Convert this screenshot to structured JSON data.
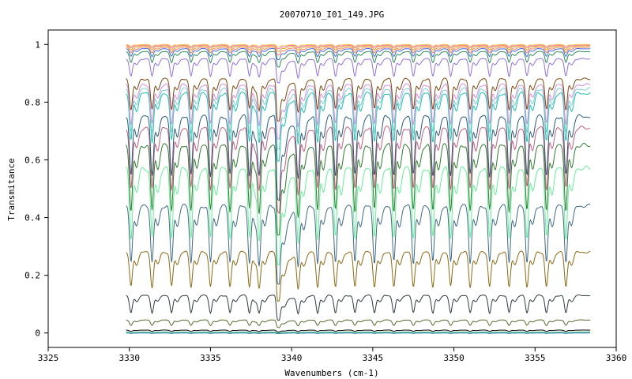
{
  "chart_data": {
    "type": "line",
    "title": "20070710_I01_149.JPG",
    "xlabel": "Wavenumbers (cm-1)",
    "ylabel": "Transmitance",
    "xlim": [
      3325,
      3360
    ],
    "ylim": [
      -0.05,
      1.05
    ],
    "xticks": [
      3325,
      3330,
      3335,
      3340,
      3345,
      3350,
      3355,
      3360
    ],
    "yticks": [
      0,
      0.2,
      0.4,
      0.6,
      0.8,
      1
    ],
    "ytick_labels": [
      "0",
      "0.2",
      "0.4",
      "0.6",
      "0.8",
      "1"
    ],
    "grid": false,
    "legend": "none",
    "x_range": [
      3329.8,
      3358.4
    ],
    "absorption_lines": [
      3330.1,
      3331.4,
      3332.6,
      3333.8,
      3335.0,
      3336.2,
      3337.4,
      3338.0,
      3339.2,
      3340.4,
      3341.6,
      3342.7,
      3343.9,
      3345.1,
      3346.3,
      3347.5,
      3348.7,
      3349.8,
      3351.0,
      3352.2,
      3353.4,
      3354.5,
      3355.7,
      3356.9
    ],
    "sharp_feature_x": 3339.1,
    "series": [
      {
        "baseline": 0.0,
        "depth": 0.002,
        "color": "#1f77b4"
      },
      {
        "baseline": 0.003,
        "depth": 0.003,
        "color": "#3cb371"
      },
      {
        "baseline": 0.01,
        "depth": 0.006,
        "color": "#000000"
      },
      {
        "baseline": 0.045,
        "depth": 0.025,
        "color": "#556b2f"
      },
      {
        "baseline": 0.13,
        "depth": 0.08,
        "color": "#2f3a40"
      },
      {
        "baseline": 0.28,
        "depth": 0.16,
        "color": "#8b6914"
      },
      {
        "baseline": 0.44,
        "depth": 0.26,
        "color": "#3e6a85"
      },
      {
        "baseline": 0.57,
        "depth": 0.32,
        "color": "#66ee99"
      },
      {
        "baseline": 0.65,
        "depth": 0.3,
        "color": "#2e7d32"
      },
      {
        "baseline": 0.71,
        "depth": 0.28,
        "color": "#c06080"
      },
      {
        "baseline": 0.75,
        "depth": 0.27,
        "color": "#2c5a78"
      },
      {
        "baseline": 0.83,
        "depth": 0.22,
        "color": "#20c0b0"
      },
      {
        "baseline": 0.845,
        "depth": 0.2,
        "color": "#7fd0d0"
      },
      {
        "baseline": 0.86,
        "depth": 0.18,
        "color": "#d090e0"
      },
      {
        "baseline": 0.88,
        "depth": 0.14,
        "color": "#7a4a10"
      },
      {
        "baseline": 0.95,
        "depth": 0.08,
        "color": "#9370db"
      },
      {
        "baseline": 0.975,
        "depth": 0.05,
        "color": "#2e8b57"
      },
      {
        "baseline": 0.985,
        "depth": 0.035,
        "color": "#4169e1"
      },
      {
        "baseline": 0.99,
        "depth": 0.025,
        "color": "#ff7f50"
      },
      {
        "baseline": 0.995,
        "depth": 0.018,
        "color": "#daa520"
      },
      {
        "baseline": 0.998,
        "depth": 0.012,
        "color": "#ff69b4"
      },
      {
        "baseline": 1.0,
        "depth": 0.008,
        "color": "#f4d35e"
      }
    ]
  }
}
